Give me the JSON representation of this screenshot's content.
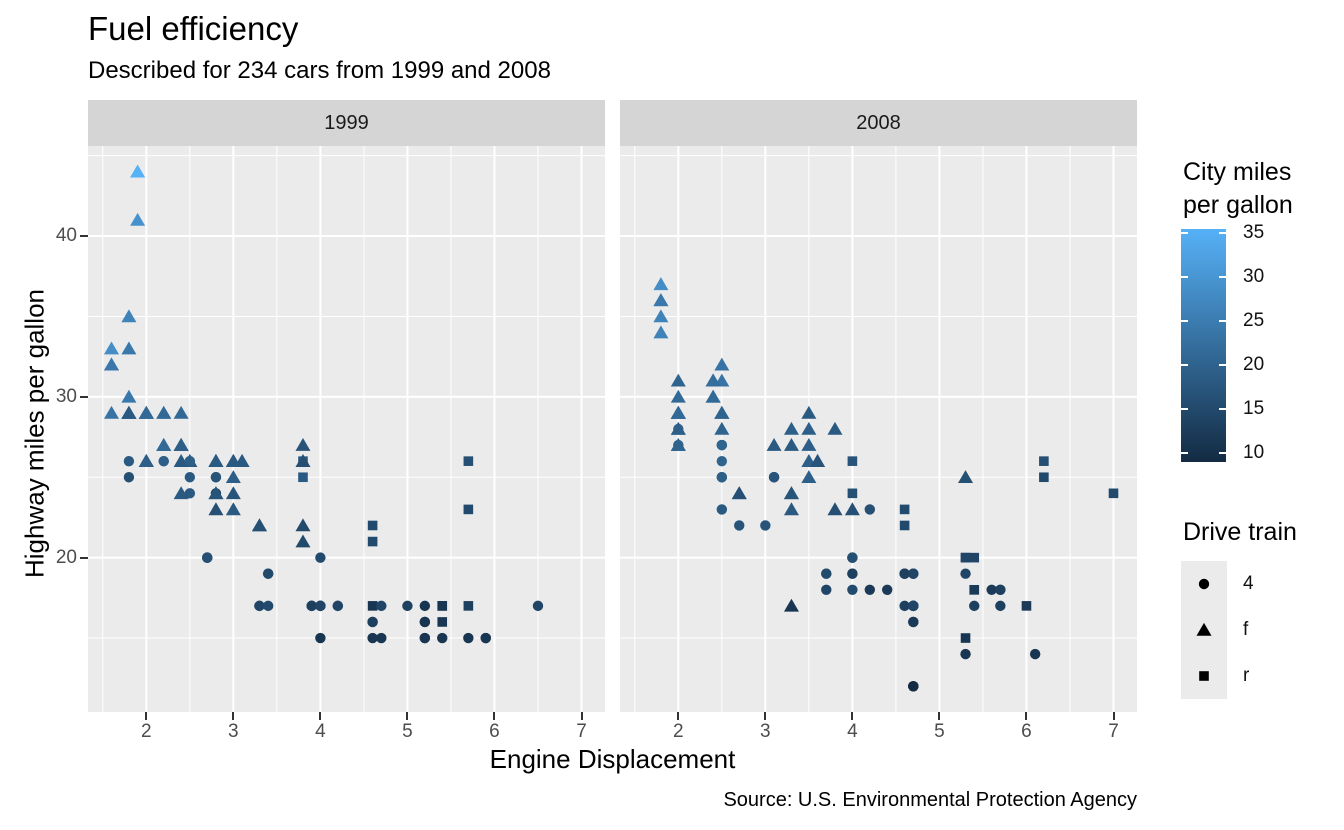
{
  "title": "Fuel efficiency",
  "subtitle": "Described for 234 cars from 1999 and 2008",
  "caption": "Source: U.S. Environmental Protection Agency",
  "axes": {
    "x_title": "Engine Displacement",
    "y_title": "Highway miles per gallon"
  },
  "colors": {
    "panel_bg": "#EBEBEB",
    "strip_bg": "#D5D5D5",
    "grid": "#FFFFFF",
    "tick": "#333333",
    "axis_text": "#4D4D4D",
    "text": "#000000"
  },
  "chart_data": {
    "type": "scatter",
    "title": "Fuel efficiency",
    "subtitle": "Described for 234 cars from 1999 and 2008",
    "caption": "Source: U.S. Environmental Protection Agency",
    "xlabel": "Engine Displacement",
    "ylabel": "Highway miles per gallon",
    "facets": [
      "1999",
      "2008"
    ],
    "x": {
      "domain": [
        1.33,
        7.27
      ],
      "ticks": [
        2,
        3,
        4,
        5,
        6,
        7
      ],
      "minor": [
        1.5,
        2.5,
        3.5,
        4.5,
        5.5,
        6.5
      ]
    },
    "y": {
      "domain": [
        10.4,
        45.6
      ],
      "ticks": [
        20,
        30,
        40
      ],
      "minor": [
        15,
        25,
        35,
        45
      ]
    },
    "color_scale": {
      "title": "City miles\nper gallon",
      "low": "#132B43",
      "high": "#56B1F7",
      "domain": [
        9,
        35
      ],
      "breaks": [
        35,
        30,
        25,
        20,
        15,
        10
      ]
    },
    "shape_scale": {
      "title": "Drive train",
      "levels": [
        "4",
        "f",
        "r"
      ],
      "shapes": [
        "circle",
        "triangle",
        "square"
      ]
    },
    "columns": [
      "displ",
      "hwy",
      "cty",
      "drv"
    ],
    "points_1999": [
      [
        1.8,
        29,
        18,
        "f"
      ],
      [
        1.8,
        29,
        21,
        "f"
      ],
      [
        2.8,
        26,
        16,
        "f"
      ],
      [
        2.8,
        26,
        18,
        "f"
      ],
      [
        1.8,
        26,
        18,
        "4"
      ],
      [
        1.8,
        25,
        16,
        "4"
      ],
      [
        2.8,
        25,
        15,
        "4"
      ],
      [
        2.8,
        25,
        17,
        "4"
      ],
      [
        2.8,
        24,
        15,
        "4"
      ],
      [
        5.7,
        17,
        13,
        "r"
      ],
      [
        5.7,
        26,
        16,
        "r"
      ],
      [
        5.7,
        23,
        15,
        "r"
      ],
      [
        5.7,
        15,
        11,
        "4"
      ],
      [
        6.5,
        17,
        14,
        "4"
      ],
      [
        2.4,
        27,
        19,
        "f"
      ],
      [
        3.1,
        26,
        18,
        "f"
      ],
      [
        2.4,
        24,
        18,
        "f"
      ],
      [
        3.0,
        24,
        17,
        "f"
      ],
      [
        3.3,
        22,
        16,
        "f"
      ],
      [
        3.3,
        22,
        16,
        "f"
      ],
      [
        3.8,
        22,
        15,
        "f"
      ],
      [
        3.8,
        21,
        15,
        "f"
      ],
      [
        3.9,
        17,
        13,
        "4"
      ],
      [
        3.9,
        17,
        14,
        "4"
      ],
      [
        5.2,
        17,
        11,
        "4"
      ],
      [
        5.2,
        15,
        11,
        "4"
      ],
      [
        3.9,
        17,
        13,
        "4"
      ],
      [
        5.2,
        16,
        11,
        "4"
      ],
      [
        5.9,
        15,
        11,
        "4"
      ],
      [
        5.2,
        15,
        11,
        "4"
      ],
      [
        5.2,
        16,
        11,
        "4"
      ],
      [
        5.9,
        15,
        11,
        "4"
      ],
      [
        4.6,
        17,
        11,
        "r"
      ],
      [
        5.4,
        17,
        11,
        "r"
      ],
      [
        4.0,
        17,
        14,
        "4"
      ],
      [
        4.0,
        17,
        15,
        "4"
      ],
      [
        4.0,
        17,
        14,
        "4"
      ],
      [
        4.2,
        17,
        14,
        "4"
      ],
      [
        4.2,
        17,
        14,
        "4"
      ],
      [
        4.6,
        16,
        13,
        "4"
      ],
      [
        4.6,
        16,
        13,
        "4"
      ],
      [
        5.4,
        15,
        11,
        "4"
      ],
      [
        3.8,
        26,
        18,
        "r"
      ],
      [
        3.8,
        25,
        18,
        "r"
      ],
      [
        4.6,
        21,
        15,
        "r"
      ],
      [
        4.6,
        22,
        15,
        "r"
      ],
      [
        1.6,
        33,
        28,
        "f"
      ],
      [
        1.6,
        32,
        24,
        "f"
      ],
      [
        1.6,
        32,
        25,
        "f"
      ],
      [
        1.6,
        29,
        23,
        "f"
      ],
      [
        1.6,
        32,
        24,
        "f"
      ],
      [
        2.4,
        26,
        18,
        "f"
      ],
      [
        2.4,
        27,
        18,
        "f"
      ],
      [
        2.5,
        26,
        18,
        "f"
      ],
      [
        2.5,
        26,
        18,
        "f"
      ],
      [
        2.0,
        26,
        19,
        "f"
      ],
      [
        2.0,
        29,
        19,
        "f"
      ],
      [
        4.0,
        20,
        15,
        "4"
      ],
      [
        4.7,
        17,
        14,
        "4"
      ],
      [
        4.0,
        15,
        11,
        "4"
      ],
      [
        4.6,
        15,
        11,
        "4"
      ],
      [
        5.4,
        17,
        11,
        "r"
      ],
      [
        5.4,
        16,
        11,
        "r"
      ],
      [
        4.0,
        17,
        14,
        "4"
      ],
      [
        5.0,
        17,
        13,
        "4"
      ],
      [
        2.4,
        29,
        21,
        "f"
      ],
      [
        2.4,
        27,
        19,
        "f"
      ],
      [
        3.0,
        26,
        18,
        "f"
      ],
      [
        3.0,
        25,
        19,
        "f"
      ],
      [
        3.3,
        17,
        15,
        "4"
      ],
      [
        3.3,
        17,
        14,
        "4"
      ],
      [
        3.1,
        26,
        18,
        "f"
      ],
      [
        3.8,
        26,
        16,
        "f"
      ],
      [
        3.8,
        27,
        17,
        "f"
      ],
      [
        2.5,
        25,
        18,
        "4"
      ],
      [
        2.5,
        24,
        18,
        "4"
      ],
      [
        2.2,
        26,
        21,
        "4"
      ],
      [
        2.2,
        26,
        19,
        "4"
      ],
      [
        2.5,
        26,
        19,
        "4"
      ],
      [
        2.5,
        26,
        19,
        "4"
      ],
      [
        2.7,
        20,
        15,
        "4"
      ],
      [
        2.7,
        20,
        16,
        "4"
      ],
      [
        3.4,
        19,
        15,
        "4"
      ],
      [
        3.4,
        17,
        15,
        "4"
      ],
      [
        2.2,
        29,
        21,
        "f"
      ],
      [
        2.2,
        27,
        21,
        "f"
      ],
      [
        3.0,
        26,
        18,
        "f"
      ],
      [
        3.0,
        26,
        18,
        "f"
      ],
      [
        2.2,
        27,
        21,
        "f"
      ],
      [
        2.2,
        29,
        21,
        "f"
      ],
      [
        3.0,
        26,
        18,
        "f"
      ],
      [
        1.8,
        30,
        24,
        "f"
      ],
      [
        1.8,
        33,
        24,
        "f"
      ],
      [
        1.8,
        35,
        26,
        "f"
      ],
      [
        4.7,
        15,
        11,
        "4"
      ],
      [
        3.0,
        23,
        18,
        "f"
      ],
      [
        2.7,
        20,
        17,
        "4"
      ],
      [
        2.7,
        20,
        16,
        "4"
      ],
      [
        3.4,
        19,
        15,
        "4"
      ],
      [
        2.0,
        29,
        21,
        "f"
      ],
      [
        2.0,
        26,
        19,
        "f"
      ],
      [
        2.8,
        24,
        17,
        "f"
      ],
      [
        1.9,
        44,
        33,
        "f"
      ],
      [
        2.0,
        29,
        21,
        "f"
      ],
      [
        2.0,
        26,
        19,
        "f"
      ],
      [
        2.8,
        23,
        16,
        "f"
      ],
      [
        2.8,
        24,
        17,
        "f"
      ],
      [
        1.9,
        44,
        35,
        "f"
      ],
      [
        1.9,
        41,
        29,
        "f"
      ],
      [
        2.0,
        29,
        21,
        "f"
      ],
      [
        2.0,
        26,
        19,
        "f"
      ],
      [
        1.8,
        29,
        21,
        "f"
      ],
      [
        1.8,
        29,
        18,
        "f"
      ],
      [
        2.8,
        26,
        16,
        "f"
      ],
      [
        2.8,
        26,
        18,
        "f"
      ]
    ],
    "points_2008": [
      [
        2.0,
        31,
        20,
        "f"
      ],
      [
        2.0,
        30,
        21,
        "f"
      ],
      [
        3.1,
        27,
        18,
        "f"
      ],
      [
        2.0,
        28,
        20,
        "4"
      ],
      [
        2.0,
        27,
        19,
        "4"
      ],
      [
        3.1,
        25,
        17,
        "4"
      ],
      [
        3.1,
        25,
        15,
        "4"
      ],
      [
        3.1,
        25,
        17,
        "4"
      ],
      [
        4.2,
        23,
        16,
        "4"
      ],
      [
        5.3,
        20,
        14,
        "r"
      ],
      [
        5.3,
        15,
        11,
        "r"
      ],
      [
        5.3,
        20,
        14,
        "r"
      ],
      [
        6.0,
        17,
        12,
        "r"
      ],
      [
        6.2,
        26,
        16,
        "r"
      ],
      [
        6.2,
        25,
        15,
        "r"
      ],
      [
        7.0,
        24,
        15,
        "r"
      ],
      [
        5.3,
        19,
        14,
        "4"
      ],
      [
        5.3,
        14,
        11,
        "4"
      ],
      [
        2.4,
        30,
        22,
        "f"
      ],
      [
        3.5,
        29,
        18,
        "f"
      ],
      [
        3.6,
        26,
        17,
        "f"
      ],
      [
        3.3,
        24,
        17,
        "f"
      ],
      [
        3.3,
        24,
        17,
        "f"
      ],
      [
        3.3,
        17,
        11,
        "f"
      ],
      [
        3.8,
        23,
        16,
        "f"
      ],
      [
        4.0,
        23,
        16,
        "f"
      ],
      [
        3.7,
        19,
        15,
        "4"
      ],
      [
        3.7,
        18,
        14,
        "4"
      ],
      [
        4.7,
        19,
        14,
        "4"
      ],
      [
        4.7,
        19,
        14,
        "4"
      ],
      [
        4.7,
        12,
        9,
        "4"
      ],
      [
        4.7,
        17,
        13,
        "4"
      ],
      [
        4.7,
        12,
        9,
        "4"
      ],
      [
        4.7,
        17,
        13,
        "4"
      ],
      [
        4.7,
        17,
        13,
        "4"
      ],
      [
        4.7,
        16,
        12,
        "4"
      ],
      [
        4.7,
        12,
        9,
        "4"
      ],
      [
        4.7,
        17,
        13,
        "4"
      ],
      [
        4.7,
        17,
        13,
        "4"
      ],
      [
        4.7,
        16,
        12,
        "4"
      ],
      [
        5.7,
        17,
        13,
        "4"
      ],
      [
        4.7,
        17,
        13,
        "4"
      ],
      [
        5.4,
        18,
        12,
        "r"
      ],
      [
        4.0,
        19,
        13,
        "4"
      ],
      [
        4.6,
        19,
        13,
        "4"
      ],
      [
        4.6,
        19,
        13,
        "4"
      ],
      [
        4.6,
        17,
        13,
        "4"
      ],
      [
        5.4,
        17,
        13,
        "4"
      ],
      [
        4.0,
        26,
        17,
        "r"
      ],
      [
        4.0,
        24,
        16,
        "r"
      ],
      [
        4.6,
        23,
        15,
        "r"
      ],
      [
        4.6,
        22,
        15,
        "r"
      ],
      [
        5.4,
        20,
        14,
        "r"
      ],
      [
        1.8,
        34,
        26,
        "f"
      ],
      [
        1.8,
        36,
        25,
        "f"
      ],
      [
        1.8,
        36,
        24,
        "f"
      ],
      [
        2.0,
        29,
        21,
        "f"
      ],
      [
        2.4,
        30,
        21,
        "f"
      ],
      [
        2.4,
        31,
        21,
        "f"
      ],
      [
        3.3,
        28,
        19,
        "f"
      ],
      [
        2.0,
        28,
        20,
        "f"
      ],
      [
        2.0,
        27,
        20,
        "f"
      ],
      [
        2.0,
        27,
        20,
        "f"
      ],
      [
        2.7,
        24,
        17,
        "f"
      ],
      [
        2.7,
        24,
        16,
        "f"
      ],
      [
        3.0,
        22,
        17,
        "4"
      ],
      [
        3.7,
        19,
        15,
        "4"
      ],
      [
        4.7,
        12,
        9,
        "4"
      ],
      [
        4.7,
        19,
        14,
        "4"
      ],
      [
        5.7,
        18,
        13,
        "4"
      ],
      [
        6.1,
        14,
        11,
        "4"
      ],
      [
        4.2,
        18,
        12,
        "4"
      ],
      [
        4.4,
        18,
        12,
        "4"
      ],
      [
        5.4,
        18,
        12,
        "r"
      ],
      [
        4.0,
        19,
        13,
        "4"
      ],
      [
        4.6,
        19,
        13,
        "4"
      ],
      [
        2.5,
        31,
        23,
        "f"
      ],
      [
        2.5,
        32,
        23,
        "f"
      ],
      [
        3.5,
        27,
        19,
        "f"
      ],
      [
        3.5,
        26,
        19,
        "f"
      ],
      [
        3.5,
        25,
        19,
        "f"
      ],
      [
        4.0,
        20,
        14,
        "4"
      ],
      [
        5.6,
        18,
        12,
        "4"
      ],
      [
        3.8,
        28,
        18,
        "f"
      ],
      [
        5.3,
        25,
        16,
        "f"
      ],
      [
        2.5,
        27,
        20,
        "4"
      ],
      [
        2.5,
        25,
        19,
        "4"
      ],
      [
        2.5,
        26,
        20,
        "4"
      ],
      [
        2.5,
        23,
        18,
        "4"
      ],
      [
        2.5,
        25,
        20,
        "4"
      ],
      [
        2.5,
        27,
        20,
        "4"
      ],
      [
        2.5,
        25,
        19,
        "4"
      ],
      [
        2.5,
        27,
        20,
        "4"
      ],
      [
        4.0,
        20,
        16,
        "4"
      ],
      [
        4.7,
        17,
        14,
        "4"
      ],
      [
        2.4,
        31,
        21,
        "f"
      ],
      [
        2.4,
        31,
        21,
        "f"
      ],
      [
        3.5,
        28,
        19,
        "f"
      ],
      [
        2.4,
        31,
        21,
        "f"
      ],
      [
        2.4,
        31,
        22,
        "f"
      ],
      [
        3.3,
        27,
        18,
        "f"
      ],
      [
        1.8,
        37,
        28,
        "f"
      ],
      [
        1.8,
        35,
        26,
        "f"
      ],
      [
        5.7,
        18,
        13,
        "4"
      ],
      [
        3.3,
        23,
        18,
        "f"
      ],
      [
        2.7,
        22,
        17,
        "4"
      ],
      [
        4.0,
        18,
        15,
        "4"
      ],
      [
        4.0,
        20,
        16,
        "4"
      ],
      [
        2.0,
        29,
        21,
        "f"
      ],
      [
        2.0,
        29,
        22,
        "f"
      ],
      [
        2.0,
        29,
        22,
        "f"
      ],
      [
        2.0,
        29,
        21,
        "f"
      ],
      [
        2.5,
        29,
        21,
        "f"
      ],
      [
        2.5,
        29,
        21,
        "f"
      ],
      [
        2.5,
        28,
        20,
        "f"
      ],
      [
        2.5,
        29,
        20,
        "f"
      ],
      [
        2.0,
        28,
        19,
        "f"
      ],
      [
        2.0,
        29,
        21,
        "f"
      ],
      [
        3.6,
        26,
        17,
        "f"
      ]
    ]
  }
}
